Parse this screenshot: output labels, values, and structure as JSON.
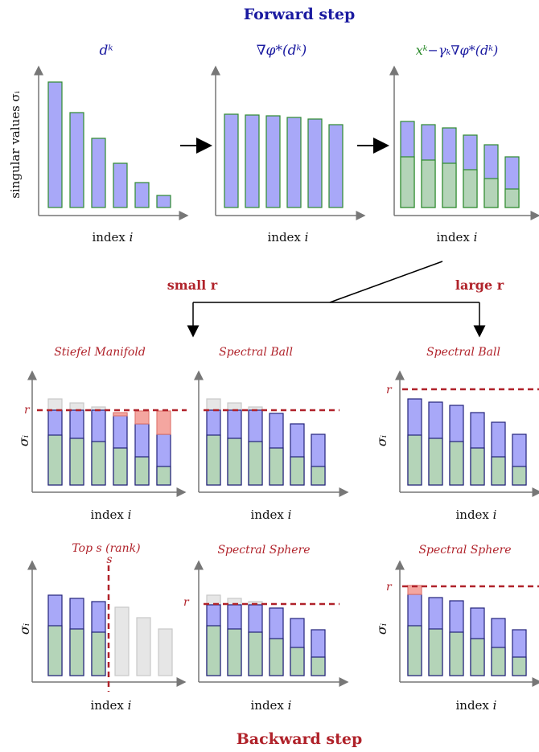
{
  "header": {
    "title": "Forward step"
  },
  "footer": {
    "title": "Backward step"
  },
  "forward": {
    "panel1_label": "dᵏ",
    "panel2_label": "∇φ*(dᵏ)",
    "panel3_label_green": "xᵏ",
    "panel3_label_blue": "−γₖ∇φ*(dᵏ)",
    "ylabel": "singular values σᵢ",
    "xlabel": "index i"
  },
  "branches": {
    "small": "small r",
    "large": "large r"
  },
  "panels": {
    "stiefel": "Stiefel Manifold",
    "spectral_ball_small": "Spectral Ball",
    "spectral_ball_large": "Spectral Ball",
    "topk": "Top s (rank)",
    "sphere_small": "Spectral Sphere",
    "sphere_large": "Spectral Sphere",
    "r_mark": "r",
    "s_mark": "s",
    "sigma": "σᵢ",
    "xlabel": "index i"
  },
  "colors": {
    "blue": "#a8a8f8",
    "green": "#b4d4b8",
    "red": "#f4a6a0",
    "gray": "#e6e6e6",
    "dashed": "#b0222a",
    "title": "#1a1aa0",
    "backward": "#b0222a"
  },
  "chart_data": [
    {
      "type": "bar",
      "name": "d_k",
      "values": [
        10,
        7.5,
        5.5,
        3.5,
        2,
        1
      ]
    },
    {
      "type": "bar",
      "name": "grad",
      "values": [
        7.5,
        7.4,
        7.3,
        7.2,
        7.0,
        6.7
      ]
    },
    {
      "type": "bar",
      "name": "step",
      "stacked": {
        "green": [
          4,
          3.8,
          3.6,
          3.2,
          2.4,
          1.6
        ],
        "blue": [
          7.0,
          6.8,
          6.6,
          6.2,
          5.2,
          4.4
        ]
      }
    }
  ]
}
